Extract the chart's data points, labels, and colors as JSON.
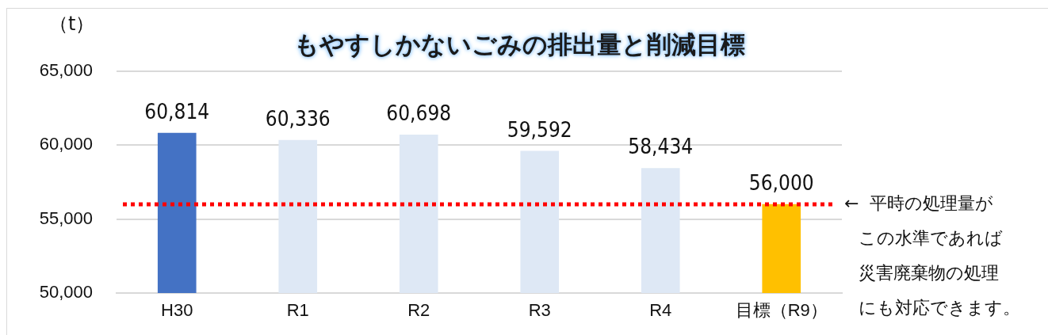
{
  "chart_data": {
    "type": "bar",
    "title": "もやすしかないごみの排出量と削減目標",
    "ylabel": "（t）",
    "categories": [
      "H30",
      "R1",
      "R2",
      "R3",
      "R4",
      "目標（R9）"
    ],
    "values": [
      60814,
      60336,
      60698,
      59592,
      58434,
      56000
    ],
    "colors": [
      "#4472c4",
      "#dee8f5",
      "#dee8f5",
      "#dee8f5",
      "#dee8f5",
      "#ffc000"
    ],
    "value_labels": [
      "60,814",
      "60,336",
      "60,698",
      "59,592",
      "58,434",
      "56,000"
    ],
    "ylim": [
      50000,
      65000
    ],
    "yticks": [
      {
        "value": 50000,
        "label": "50,000"
      },
      {
        "value": 55000,
        "label": "55,000"
      },
      {
        "value": 60000,
        "label": "60,000"
      },
      {
        "value": 65000,
        "label": "65,000"
      }
    ],
    "grid": "y",
    "legend": false,
    "ref_lines": [
      {
        "axis": "y",
        "value": 56000,
        "label": "←  平時の処理量がこの水準であれば災害廃棄物の処理にも対応できます。",
        "color": "#ff0000",
        "line_style": "dotted"
      }
    ]
  }
}
